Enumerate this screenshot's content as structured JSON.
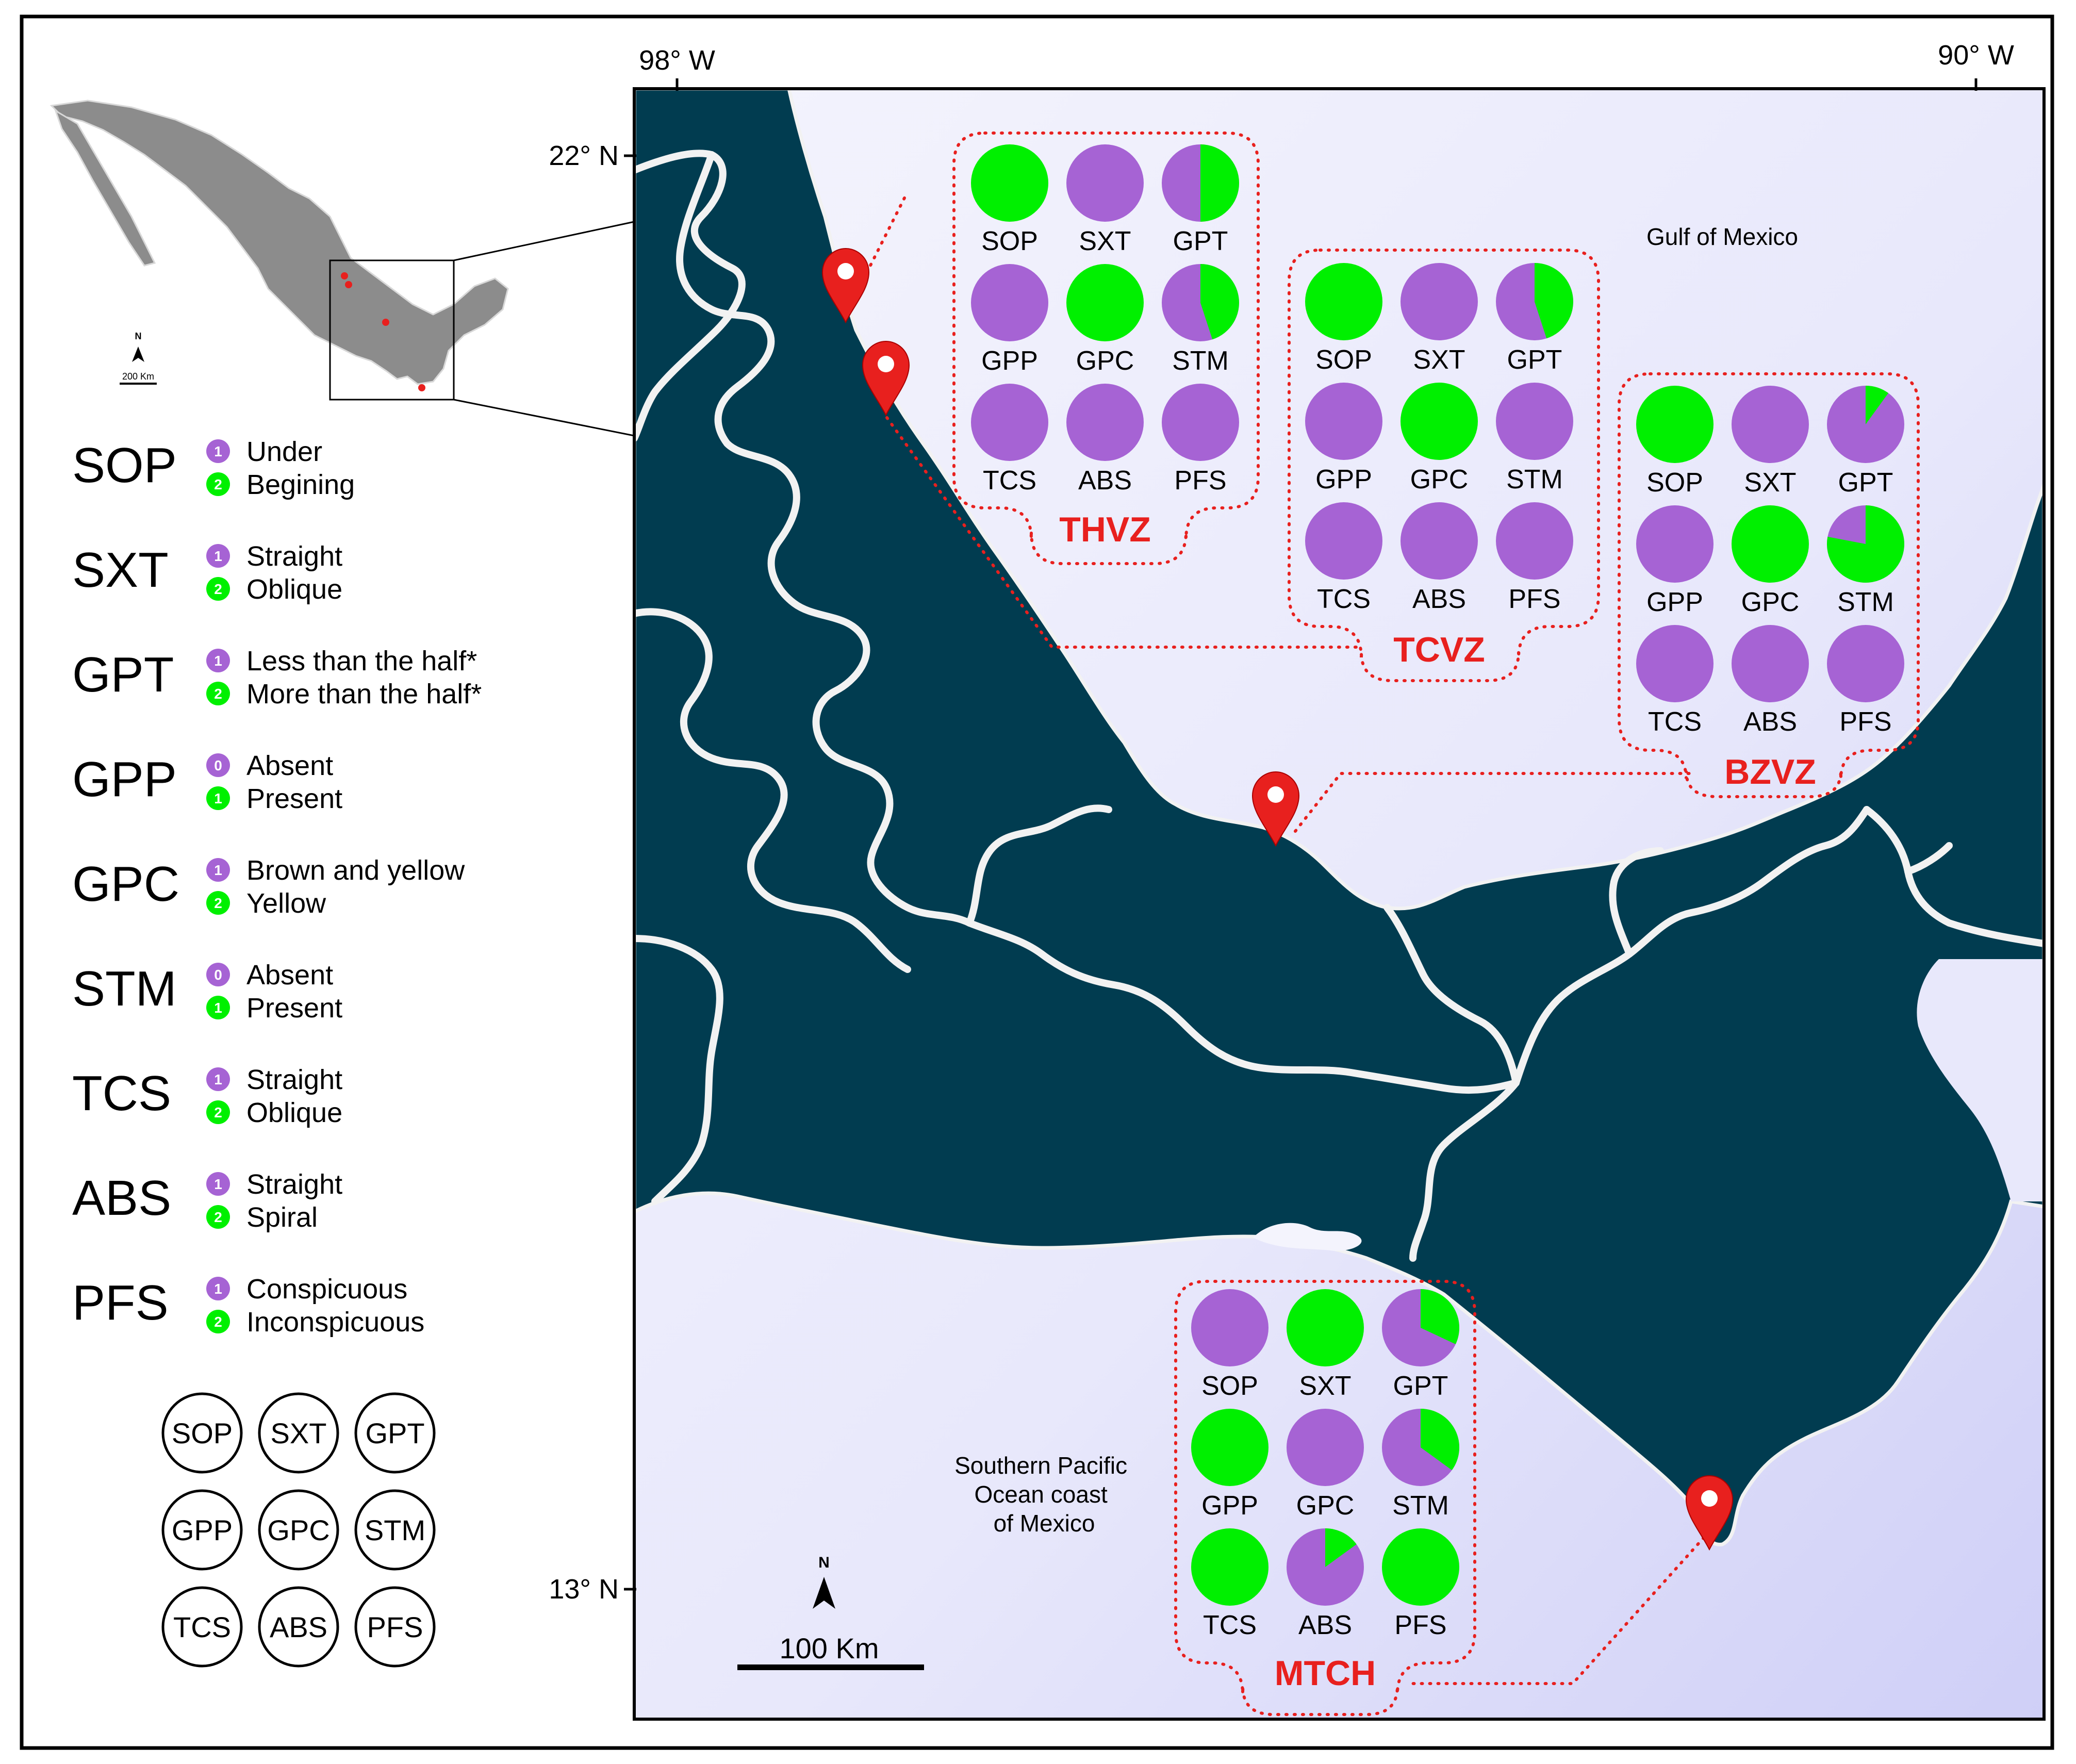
{
  "colors": {
    "state1": "#a663d4",
    "state2": "#00f000",
    "land": "#013c50",
    "sea": "#e6e6fb",
    "boundary": "#f2f2f2",
    "marker": "#e8201e",
    "site_label": "#e8201e"
  },
  "coordinates": {
    "lon_west": "98° W",
    "lon_east": "90° W",
    "lat_north": "22° N",
    "lat_south": "13° N"
  },
  "sea_labels": {
    "gulf": "Gulf of Mexico",
    "pacific": [
      "Southern Pacific",
      "Ocean coast",
      "of Mexico"
    ]
  },
  "inset": {
    "north": "N",
    "scale": "200 Km"
  },
  "scale_bar": {
    "label": "100 Km",
    "north": "N"
  },
  "legend": [
    {
      "code": "SOP",
      "states": [
        {
          "badge": "1",
          "label": "Under"
        },
        {
          "badge": "2",
          "label": "Begining"
        }
      ]
    },
    {
      "code": "SXT",
      "states": [
        {
          "badge": "1",
          "label": "Straight"
        },
        {
          "badge": "2",
          "label": "Oblique"
        }
      ]
    },
    {
      "code": "GPT",
      "states": [
        {
          "badge": "1",
          "label": "Less than the half*"
        },
        {
          "badge": "2",
          "label": "More than the half*"
        }
      ]
    },
    {
      "code": "GPP",
      "states": [
        {
          "badge": "0",
          "label": "Absent"
        },
        {
          "badge": "1",
          "label": "Present"
        }
      ]
    },
    {
      "code": "GPC",
      "states": [
        {
          "badge": "1",
          "label": "Brown and yellow"
        },
        {
          "badge": "2",
          "label": "Yellow"
        }
      ]
    },
    {
      "code": "STM",
      "states": [
        {
          "badge": "0",
          "label": "Absent"
        },
        {
          "badge": "1",
          "label": "Present"
        }
      ]
    },
    {
      "code": "TCS",
      "states": [
        {
          "badge": "1",
          "label": "Straight"
        },
        {
          "badge": "2",
          "label": "Oblique"
        }
      ]
    },
    {
      "code": "ABS",
      "states": [
        {
          "badge": "1",
          "label": "Straight"
        },
        {
          "badge": "2",
          "label": "Spiral"
        }
      ]
    },
    {
      "code": "PFS",
      "states": [
        {
          "badge": "1",
          "label": "Conspicuous"
        },
        {
          "badge": "2",
          "label": "Inconspicuous"
        }
      ]
    }
  ],
  "key_grid": [
    "SOP",
    "SXT",
    "GPT",
    "GPP",
    "GPC",
    "STM",
    "TCS",
    "ABS",
    "PFS"
  ],
  "sites": [
    {
      "name": "THVZ",
      "traits": [
        {
          "code": "SOP",
          "state2_fraction": 1.0
        },
        {
          "code": "SXT",
          "state2_fraction": 0.0
        },
        {
          "code": "GPT",
          "state2_fraction": 0.5
        },
        {
          "code": "GPP",
          "state2_fraction": 0.0
        },
        {
          "code": "GPC",
          "state2_fraction": 1.0
        },
        {
          "code": "STM",
          "state2_fraction": 0.45
        },
        {
          "code": "TCS",
          "state2_fraction": 0.0
        },
        {
          "code": "ABS",
          "state2_fraction": 0.0
        },
        {
          "code": "PFS",
          "state2_fraction": 0.0
        }
      ]
    },
    {
      "name": "TCVZ",
      "traits": [
        {
          "code": "SOP",
          "state2_fraction": 1.0
        },
        {
          "code": "SXT",
          "state2_fraction": 0.0
        },
        {
          "code": "GPT",
          "state2_fraction": 0.45
        },
        {
          "code": "GPP",
          "state2_fraction": 0.0
        },
        {
          "code": "GPC",
          "state2_fraction": 1.0
        },
        {
          "code": "STM",
          "state2_fraction": 0.0
        },
        {
          "code": "TCS",
          "state2_fraction": 0.0
        },
        {
          "code": "ABS",
          "state2_fraction": 0.0
        },
        {
          "code": "PFS",
          "state2_fraction": 0.0
        }
      ]
    },
    {
      "name": "BZVZ",
      "traits": [
        {
          "code": "SOP",
          "state2_fraction": 1.0
        },
        {
          "code": "SXT",
          "state2_fraction": 0.0
        },
        {
          "code": "GPT",
          "state2_fraction": 0.1
        },
        {
          "code": "GPP",
          "state2_fraction": 0.0
        },
        {
          "code": "GPC",
          "state2_fraction": 1.0
        },
        {
          "code": "STM",
          "state2_fraction": 0.78
        },
        {
          "code": "TCS",
          "state2_fraction": 0.0
        },
        {
          "code": "ABS",
          "state2_fraction": 0.0
        },
        {
          "code": "PFS",
          "state2_fraction": 0.0
        }
      ]
    },
    {
      "name": "MTCH",
      "traits": [
        {
          "code": "SOP",
          "state2_fraction": 0.0
        },
        {
          "code": "SXT",
          "state2_fraction": 1.0
        },
        {
          "code": "GPT",
          "state2_fraction": 0.32
        },
        {
          "code": "GPP",
          "state2_fraction": 1.0
        },
        {
          "code": "GPC",
          "state2_fraction": 0.0
        },
        {
          "code": "STM",
          "state2_fraction": 0.35
        },
        {
          "code": "TCS",
          "state2_fraction": 1.0
        },
        {
          "code": "ABS",
          "state2_fraction": 0.15
        },
        {
          "code": "PFS",
          "state2_fraction": 1.0
        }
      ]
    }
  ]
}
